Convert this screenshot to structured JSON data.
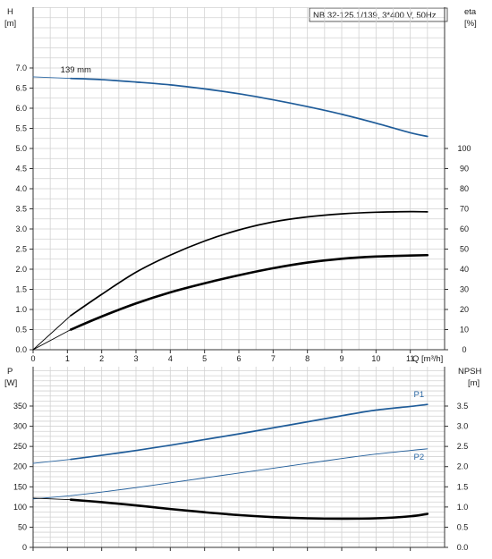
{
  "chart_data": [
    {
      "type": "line",
      "title": "NB 32-125.1/139, 3*400 V, 50Hz",
      "xlabel": "Q [m³/h]",
      "ylabel_left": [
        "H",
        "[m]"
      ],
      "ylabel_right": [
        "eta",
        "[%]"
      ],
      "xlim": [
        0,
        12.0
      ],
      "ylim_left": [
        0,
        8.0
      ],
      "ylim_right": [
        0,
        100
      ],
      "grid": true,
      "x_ticks": [
        "0",
        "1",
        "2",
        "3",
        "4",
        "5",
        "6",
        "7",
        "8",
        "9",
        "10",
        "11"
      ],
      "y_left_ticks": [
        "0.0",
        "0.5",
        "1.0",
        "1.5",
        "2.0",
        "2.5",
        "3.0",
        "3.5",
        "4.0",
        "4.5",
        "5.0",
        "5.5",
        "6.0",
        "6.5",
        "7.0"
      ],
      "y_right_ticks": [
        "0",
        "10",
        "20",
        "30",
        "40",
        "50",
        "60",
        "70",
        "80",
        "90",
        "100"
      ],
      "annotations": [
        {
          "text": "139 mm",
          "x": 0.8,
          "y": 6.85
        }
      ],
      "series": [
        {
          "key": "H_ext",
          "axis": "left",
          "style": "thin",
          "color": "#2e6aa6",
          "x": [
            0,
            1.1
          ],
          "y": [
            6.78,
            6.74
          ]
        },
        {
          "key": "H",
          "axis": "left",
          "style": "medium",
          "color": "#1f5c99",
          "x": [
            1.1,
            2,
            3,
            4,
            5,
            6,
            7,
            8,
            9,
            10,
            11,
            11.5
          ],
          "y": [
            6.74,
            6.71,
            6.65,
            6.58,
            6.48,
            6.36,
            6.21,
            6.04,
            5.85,
            5.63,
            5.39,
            5.3
          ]
        },
        {
          "key": "eta_ext",
          "axis": "right",
          "style": "thin",
          "color": "#000000",
          "x": [
            0,
            1.1
          ],
          "y": [
            0,
            17
          ]
        },
        {
          "key": "eta",
          "axis": "right",
          "style": "medium",
          "color": "#000000",
          "x": [
            1.1,
            2,
            3,
            4,
            5,
            6,
            7,
            8,
            9,
            10,
            11,
            11.5
          ],
          "y": [
            17,
            27.5,
            38.5,
            47,
            54,
            59.5,
            63.5,
            66,
            67.5,
            68.3,
            68.6,
            68.5
          ]
        },
        {
          "key": "eta_b_ext",
          "axis": "right",
          "style": "thin",
          "color": "#000000",
          "x": [
            0,
            1.1
          ],
          "y": [
            0,
            10
          ]
        },
        {
          "key": "eta_b",
          "axis": "right",
          "style": "bold",
          "color": "#000000",
          "x": [
            1.1,
            2,
            3,
            4,
            5,
            6,
            7,
            8,
            9,
            10,
            11,
            11.5
          ],
          "y": [
            10,
            16.5,
            23,
            28.5,
            33,
            37,
            40.5,
            43.3,
            45.2,
            46.3,
            46.8,
            47
          ]
        }
      ]
    },
    {
      "type": "line",
      "ylabel_left": [
        "P",
        "[W]"
      ],
      "ylabel_right": [
        "NPSH",
        "[m]"
      ],
      "xlim": [
        0,
        12.0
      ],
      "ylim_left": [
        0,
        420
      ],
      "ylim_right": [
        0,
        4.2
      ],
      "grid": true,
      "y_left_ticks": [
        "0",
        "50",
        "100",
        "150",
        "200",
        "250",
        "300",
        "350"
      ],
      "y_right_ticks": [
        "0.0",
        "0.5",
        "1.0",
        "1.5",
        "2.0",
        "2.5",
        "3.0",
        "3.5"
      ],
      "series": [
        {
          "key": "P1_ext",
          "axis": "left",
          "style": "thin",
          "color": "#2e6aa6",
          "x": [
            0,
            1.1
          ],
          "y": [
            208,
            218
          ]
        },
        {
          "key": "P1",
          "name": "P1",
          "axis": "left",
          "style": "medium",
          "color": "#1f5c99",
          "x": [
            1.1,
            2,
            3,
            4,
            5,
            6,
            7,
            8,
            9,
            10,
            11,
            11.5
          ],
          "y": [
            218,
            228,
            240,
            253,
            267,
            281,
            296,
            311,
            326,
            340,
            349,
            354
          ]
        },
        {
          "key": "P2_ext",
          "axis": "left",
          "style": "thin",
          "color": "#2e6aa6",
          "x": [
            0,
            1.1
          ],
          "y": [
            120,
            128
          ]
        },
        {
          "key": "P2",
          "name": "P2",
          "axis": "left",
          "style": "thin",
          "color": "#1f5c99",
          "x": [
            1.1,
            2,
            3,
            4,
            5,
            6,
            7,
            8,
            9,
            10,
            11,
            11.5
          ],
          "y": [
            128,
            137,
            148,
            160,
            172,
            184,
            196,
            208,
            220,
            231,
            240,
            244
          ]
        },
        {
          "key": "NPSH_ext",
          "axis": "right",
          "style": "thin",
          "color": "#000000",
          "x": [
            0,
            1.1
          ],
          "y": [
            1.22,
            1.18
          ]
        },
        {
          "key": "NPSH",
          "axis": "right",
          "style": "bold",
          "color": "#000000",
          "x": [
            1.1,
            2,
            3,
            4,
            5,
            6,
            7,
            8,
            9,
            10,
            11,
            11.5
          ],
          "y": [
            1.18,
            1.12,
            1.04,
            0.95,
            0.87,
            0.8,
            0.75,
            0.72,
            0.71,
            0.72,
            0.77,
            0.83
          ]
        }
      ],
      "series_labels": [
        "P1",
        "P2"
      ]
    }
  ]
}
